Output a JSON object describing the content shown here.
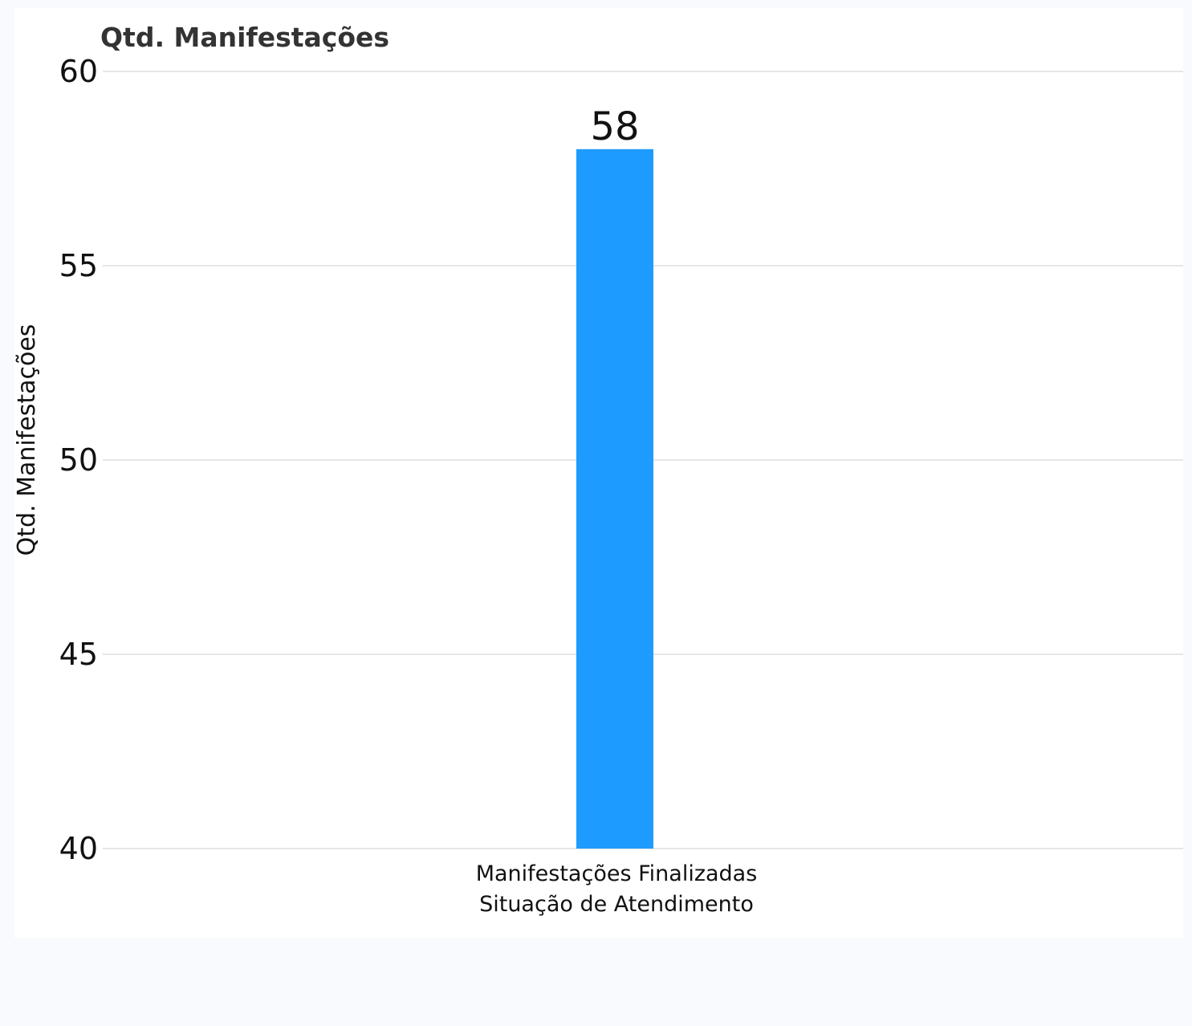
{
  "chart_data": {
    "type": "bar",
    "title": "Qtd. Manifestações",
    "ylabel": "Qtd. Manifestações",
    "xlabel": "",
    "ylim": [
      40,
      60
    ],
    "yticks": [
      "40",
      "45",
      "50",
      "55",
      "60"
    ],
    "grid": true,
    "categories": [
      [
        "Manifestações Finalizadas",
        "Situação de Atendimento"
      ]
    ],
    "series": [
      {
        "values": [
          58
        ],
        "color": "#1e9bff"
      }
    ],
    "data_labels": [
      "58"
    ]
  },
  "colors": {
    "bar": "#1e9bff",
    "background": "#f9fafd",
    "panel": "#ffffff",
    "grid": "#e6e6e6"
  }
}
